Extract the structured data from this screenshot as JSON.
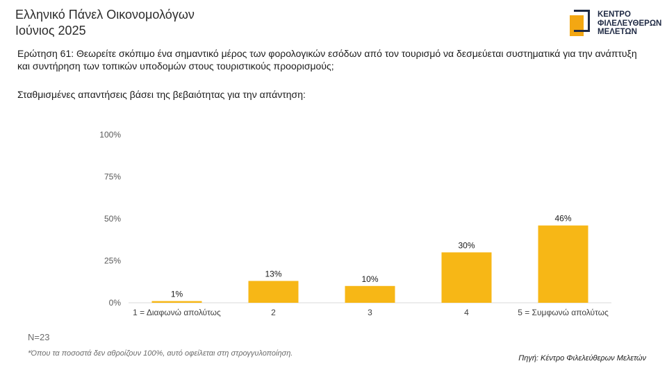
{
  "header": {
    "title_line1": "Ελληνικό Πάνελ Οικονομολόγων",
    "title_line2": "Ιούνιος 2025"
  },
  "logo": {
    "line1": "ΚΕΝΤΡΟ",
    "line2": "ΦΙΛΕΛΕΥΘΕΡΩΝ",
    "line3": "ΜΕΛΕΤΩΝ",
    "accent_color": "#f3a712",
    "dark_color": "#1f2a44"
  },
  "question": "Ερώτηση 61: Θεωρείτε σκόπιμο ένα σημαντικό μέρος των φορολογικών εσόδων από τον τουρισμό να δεσμεύεται συστηματικά για την ανάπτυξη και συντήρηση των τοπικών υποδομών στους τουριστικούς προορισμούς;",
  "subtitle": "Σταθμισμένες απαντήσεις βάσει της βεβαιότητας για την απάντηση:",
  "chart_data": {
    "type": "bar",
    "categories": [
      "1 = Διαφωνώ απολύτως",
      "2",
      "3",
      "4",
      "5 = Συμφωνώ απολύτως"
    ],
    "values": [
      1,
      13,
      10,
      30,
      46
    ],
    "value_labels": [
      "1%",
      "13%",
      "10%",
      "30%",
      "46%"
    ],
    "ylim": [
      0,
      100
    ],
    "yticks": [
      0,
      25,
      50,
      75,
      100
    ],
    "ytick_labels": [
      "0%",
      "25%",
      "50%",
      "75%",
      "100%"
    ],
    "bar_color": "#f7b716",
    "grid": false,
    "legend": "none"
  },
  "notes": {
    "n": "N=23",
    "footnote": "*Όπου τα ποσοστά δεν αθροίζουν 100%, αυτό οφείλεται στη στρογγυλοποίηση.",
    "source": "Πηγή: Κέντρο Φιλελεύθερων Μελετών"
  }
}
